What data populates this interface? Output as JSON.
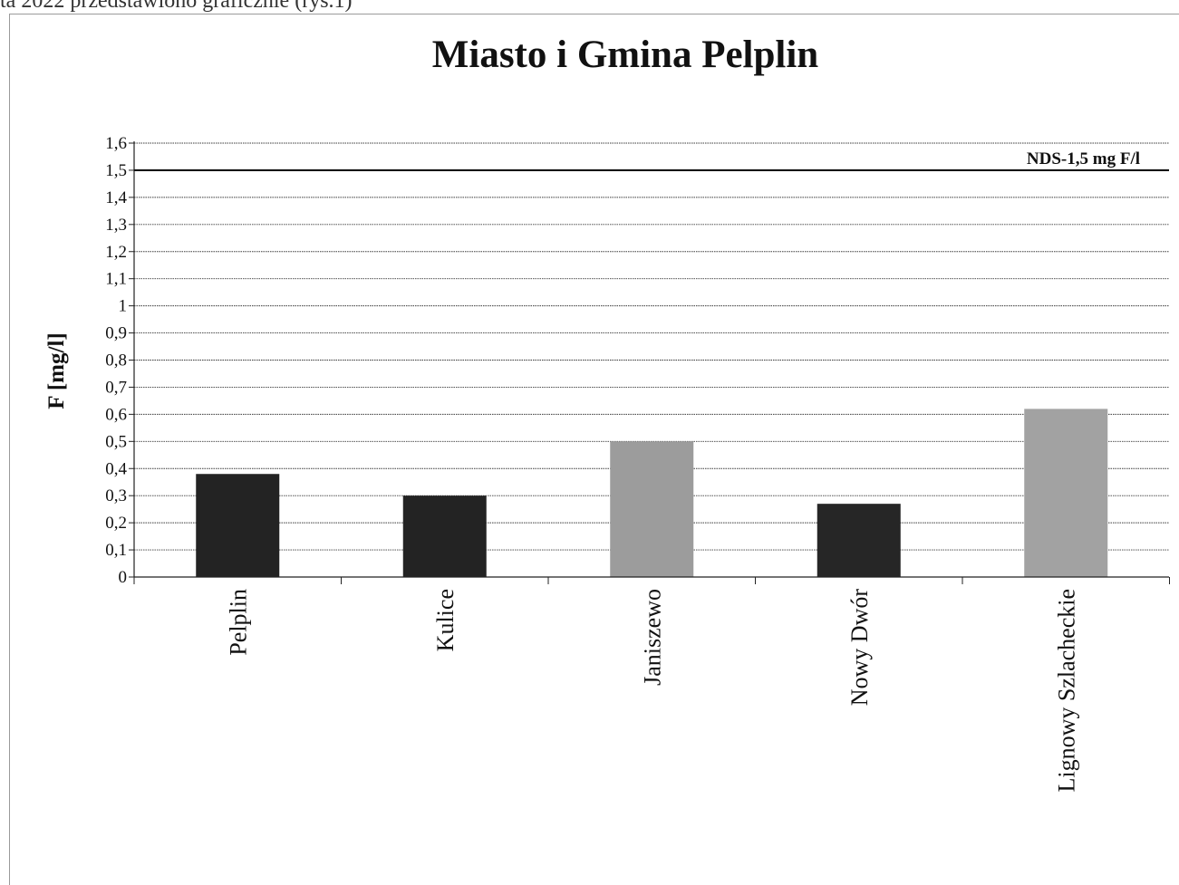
{
  "page": {
    "top_text": "ta 2022 przedstawiono graficznie (rys.1)"
  },
  "chart_data": {
    "type": "bar",
    "title": "Miasto i Gmina Pelplin",
    "xlabel": "",
    "ylabel": "F [mg/l]",
    "ylim": [
      0,
      1.6
    ],
    "yticks": [
      "0",
      "0,1",
      "0,2",
      "0,3",
      "0,4",
      "0,5",
      "0,6",
      "0,7",
      "0,8",
      "0,9",
      "1",
      "1,1",
      "1,2",
      "1,3",
      "1,4",
      "1,5",
      "1,6"
    ],
    "grid": true,
    "categories": [
      "Pelplin",
      "Kulice",
      "Janiszewo",
      "Nowy Dwór",
      "Lignowy Szlacheckie"
    ],
    "values": [
      0.38,
      0.3,
      0.5,
      0.27,
      0.62
    ],
    "bar_colors": [
      "#232323",
      "#232323",
      "#9c9c9c",
      "#262626",
      "#a2a2a2"
    ],
    "reference_line": {
      "value": 1.5,
      "label": "NDS-1,5 mg F/l"
    }
  }
}
